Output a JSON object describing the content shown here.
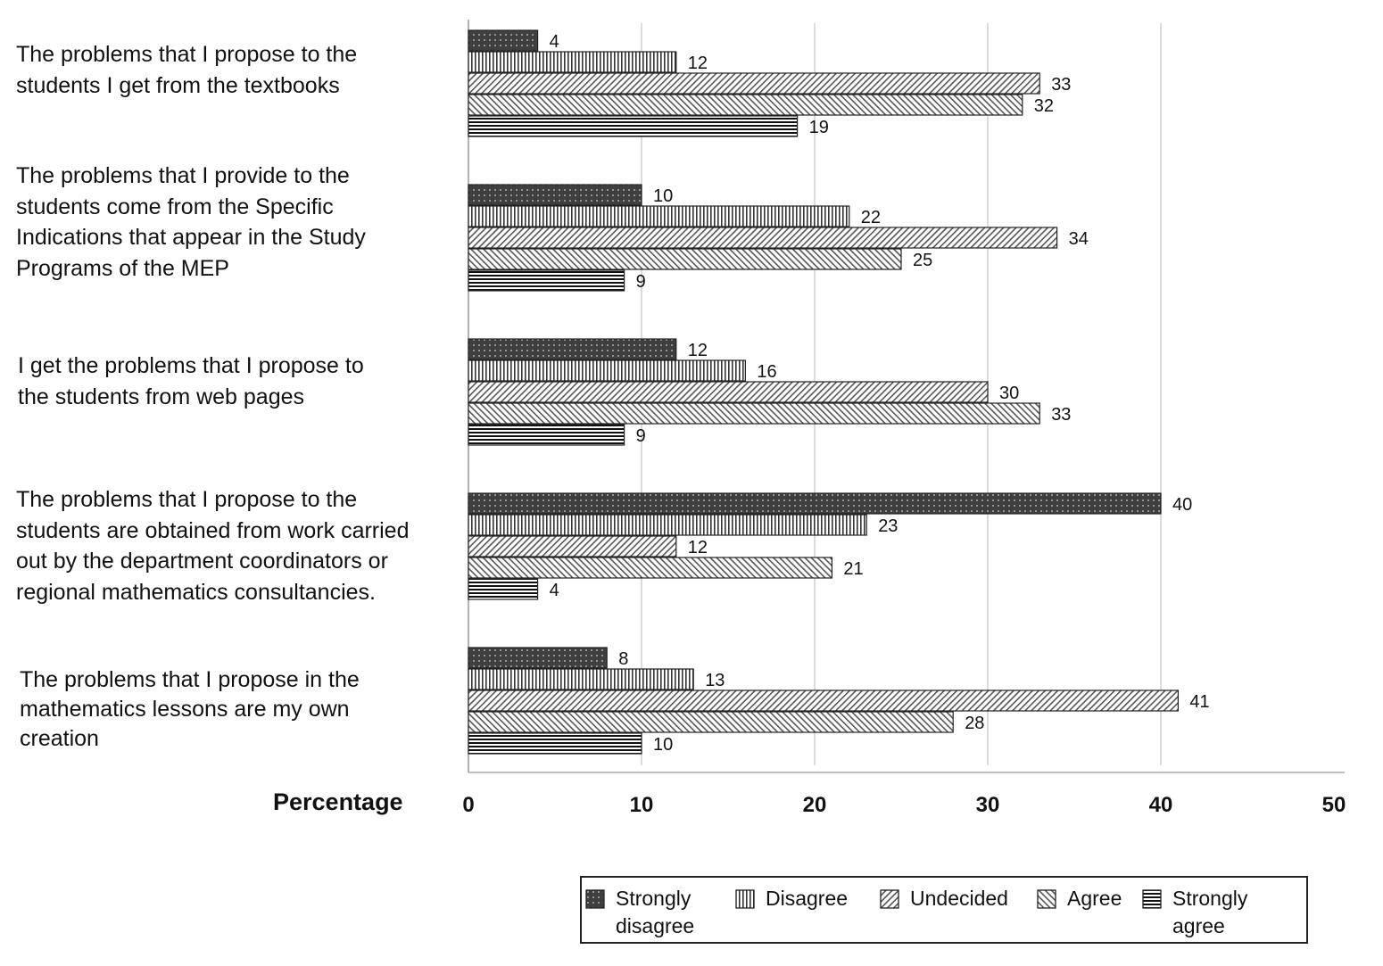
{
  "chart_data": {
    "type": "bar",
    "orientation": "horizontal",
    "xlabel": "Percentage",
    "xlim": [
      0,
      50
    ],
    "xticks": [
      0,
      10,
      20,
      30,
      40,
      50
    ],
    "grid": "vertical",
    "legend_position": "bottom-right",
    "categories": [
      [
        "The problems that I propose to the",
        "students I get from the textbooks"
      ],
      [
        "The problems that I provide to the",
        "students come from the Specific",
        "Indications that appear in the Study",
        "Programs of the MEP"
      ],
      [
        "I get the problems that I propose to",
        "the students from web pages"
      ],
      [
        "The problems that I propose to the",
        "students are obtained from work carried",
        "out by the department coordinators or",
        "regional mathematics consultancies."
      ],
      [
        "The problems that I propose in the",
        "mathematics lessons are my own",
        "creation"
      ]
    ],
    "series": [
      {
        "name": "Strongly disagree",
        "legend_lines": [
          "Strongly",
          "disagree"
        ],
        "pattern": "dots",
        "values": [
          4,
          10,
          12,
          40,
          8
        ]
      },
      {
        "name": "Disagree",
        "legend_lines": [
          "Disagree"
        ],
        "pattern": "vertical-lines",
        "values": [
          12,
          22,
          16,
          23,
          13
        ]
      },
      {
        "name": "Undecided",
        "legend_lines": [
          "Undecided"
        ],
        "pattern": "forward-diagonal",
        "values": [
          33,
          34,
          30,
          12,
          41
        ]
      },
      {
        "name": "Agree",
        "legend_lines": [
          "Agree"
        ],
        "pattern": "back-diagonal",
        "values": [
          32,
          25,
          33,
          21,
          28
        ]
      },
      {
        "name": "Strongly agree",
        "legend_lines": [
          "Strongly",
          "agree"
        ],
        "pattern": "horizontal-lines",
        "values": [
          19,
          9,
          9,
          4,
          10
        ]
      }
    ]
  }
}
